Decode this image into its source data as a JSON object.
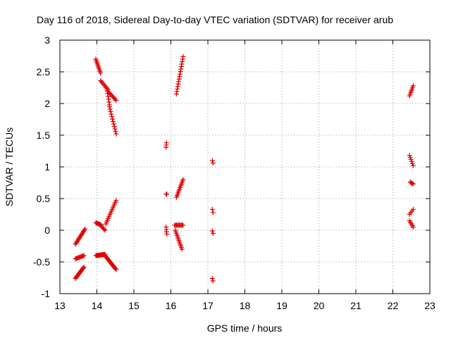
{
  "chart_data": {
    "type": "scatter",
    "title": "Day 116 of 2018, Sidereal Day-to-day VTEC variation (SDTVAR) for receiver arub",
    "xlabel": "GPS time / hours",
    "ylabel": "SDTVAR / TECUs",
    "xlim": [
      13,
      23
    ],
    "ylim": [
      -1,
      3
    ],
    "xticks": [
      13,
      14,
      15,
      16,
      17,
      18,
      19,
      20,
      21,
      22,
      23
    ],
    "yticks": [
      -1,
      -0.5,
      0,
      0.5,
      1,
      1.5,
      2,
      2.5,
      3
    ],
    "xtick_labels": [
      "13",
      "14",
      "15",
      "16",
      "17",
      "18",
      "19",
      "20",
      "21",
      "22",
      "23"
    ],
    "ytick_labels": [
      "-1",
      "-0.5",
      "0",
      "0.5",
      "1",
      "1.5",
      "2",
      "2.5",
      "3"
    ],
    "grid": true,
    "marker": "plus",
    "color": "#e00000",
    "series": [
      {
        "name": "SDTVAR",
        "segments": [
          {
            "x0": 13.42,
            "y0": -0.76,
            "x1": 13.65,
            "y1": -0.58,
            "n": 14
          },
          {
            "x0": 13.42,
            "y0": -0.45,
            "x1": 13.65,
            "y1": -0.4,
            "n": 10
          },
          {
            "x0": 13.42,
            "y0": -0.22,
            "x1": 13.68,
            "y1": 0.02,
            "n": 14
          },
          {
            "x0": 13.97,
            "y0": 2.7,
            "x1": 14.1,
            "y1": 2.48,
            "n": 10
          },
          {
            "x0": 14.1,
            "y0": 2.36,
            "x1": 14.3,
            "y1": 2.22,
            "n": 8
          },
          {
            "x0": 14.28,
            "y0": 2.2,
            "x1": 14.34,
            "y1": 1.98,
            "n": 6
          },
          {
            "x0": 14.34,
            "y0": 1.95,
            "x1": 14.52,
            "y1": 1.52,
            "n": 12
          },
          {
            "x0": 14.32,
            "y0": 2.18,
            "x1": 14.52,
            "y1": 2.05,
            "n": 8
          },
          {
            "x0": 13.97,
            "y0": 0.12,
            "x1": 14.12,
            "y1": 0.08,
            "n": 8
          },
          {
            "x0": 14.14,
            "y0": 0.05,
            "x1": 14.22,
            "y1": 0.0,
            "n": 4
          },
          {
            "x0": 14.24,
            "y0": 0.1,
            "x1": 14.52,
            "y1": 0.47,
            "n": 14
          },
          {
            "x0": 13.97,
            "y0": -0.4,
            "x1": 14.22,
            "y1": -0.38,
            "n": 14
          },
          {
            "x0": 14.22,
            "y0": -0.4,
            "x1": 14.52,
            "y1": -0.62,
            "n": 16
          },
          {
            "x0": 15.87,
            "y0": 1.31,
            "x1": 15.88,
            "y1": 1.38,
            "n": 3
          },
          {
            "x0": 15.87,
            "y0": 0.57,
            "x1": 15.89,
            "y1": 0.57,
            "n": 2
          },
          {
            "x0": 15.87,
            "y0": 0.05,
            "x1": 15.89,
            "y1": -0.06,
            "n": 4
          },
          {
            "x0": 16.15,
            "y0": 2.15,
            "x1": 16.33,
            "y1": 2.74,
            "n": 16
          },
          {
            "x0": 16.15,
            "y0": 0.52,
            "x1": 16.33,
            "y1": 0.8,
            "n": 12
          },
          {
            "x0": 16.1,
            "y0": 0.08,
            "x1": 16.33,
            "y1": 0.08,
            "n": 10
          },
          {
            "x0": 16.12,
            "y0": 0.0,
            "x1": 16.3,
            "y1": -0.3,
            "n": 12
          },
          {
            "x0": 17.12,
            "y0": 1.1,
            "x1": 17.14,
            "y1": 1.06,
            "n": 2
          },
          {
            "x0": 17.12,
            "y0": 0.33,
            "x1": 17.14,
            "y1": 0.28,
            "n": 2
          },
          {
            "x0": 17.12,
            "y0": -0.01,
            "x1": 17.14,
            "y1": -0.05,
            "n": 2
          },
          {
            "x0": 17.12,
            "y0": -0.76,
            "x1": 17.14,
            "y1": -0.8,
            "n": 2
          },
          {
            "x0": 22.45,
            "y0": 2.12,
            "x1": 22.55,
            "y1": 2.28,
            "n": 7
          },
          {
            "x0": 22.45,
            "y0": 1.18,
            "x1": 22.55,
            "y1": 1.02,
            "n": 6
          },
          {
            "x0": 22.47,
            "y0": 0.76,
            "x1": 22.55,
            "y1": 0.73,
            "n": 4
          },
          {
            "x0": 22.45,
            "y0": 0.25,
            "x1": 22.55,
            "y1": 0.33,
            "n": 4
          },
          {
            "x0": 22.45,
            "y0": 0.15,
            "x1": 22.55,
            "y1": 0.05,
            "n": 5
          }
        ]
      }
    ]
  }
}
